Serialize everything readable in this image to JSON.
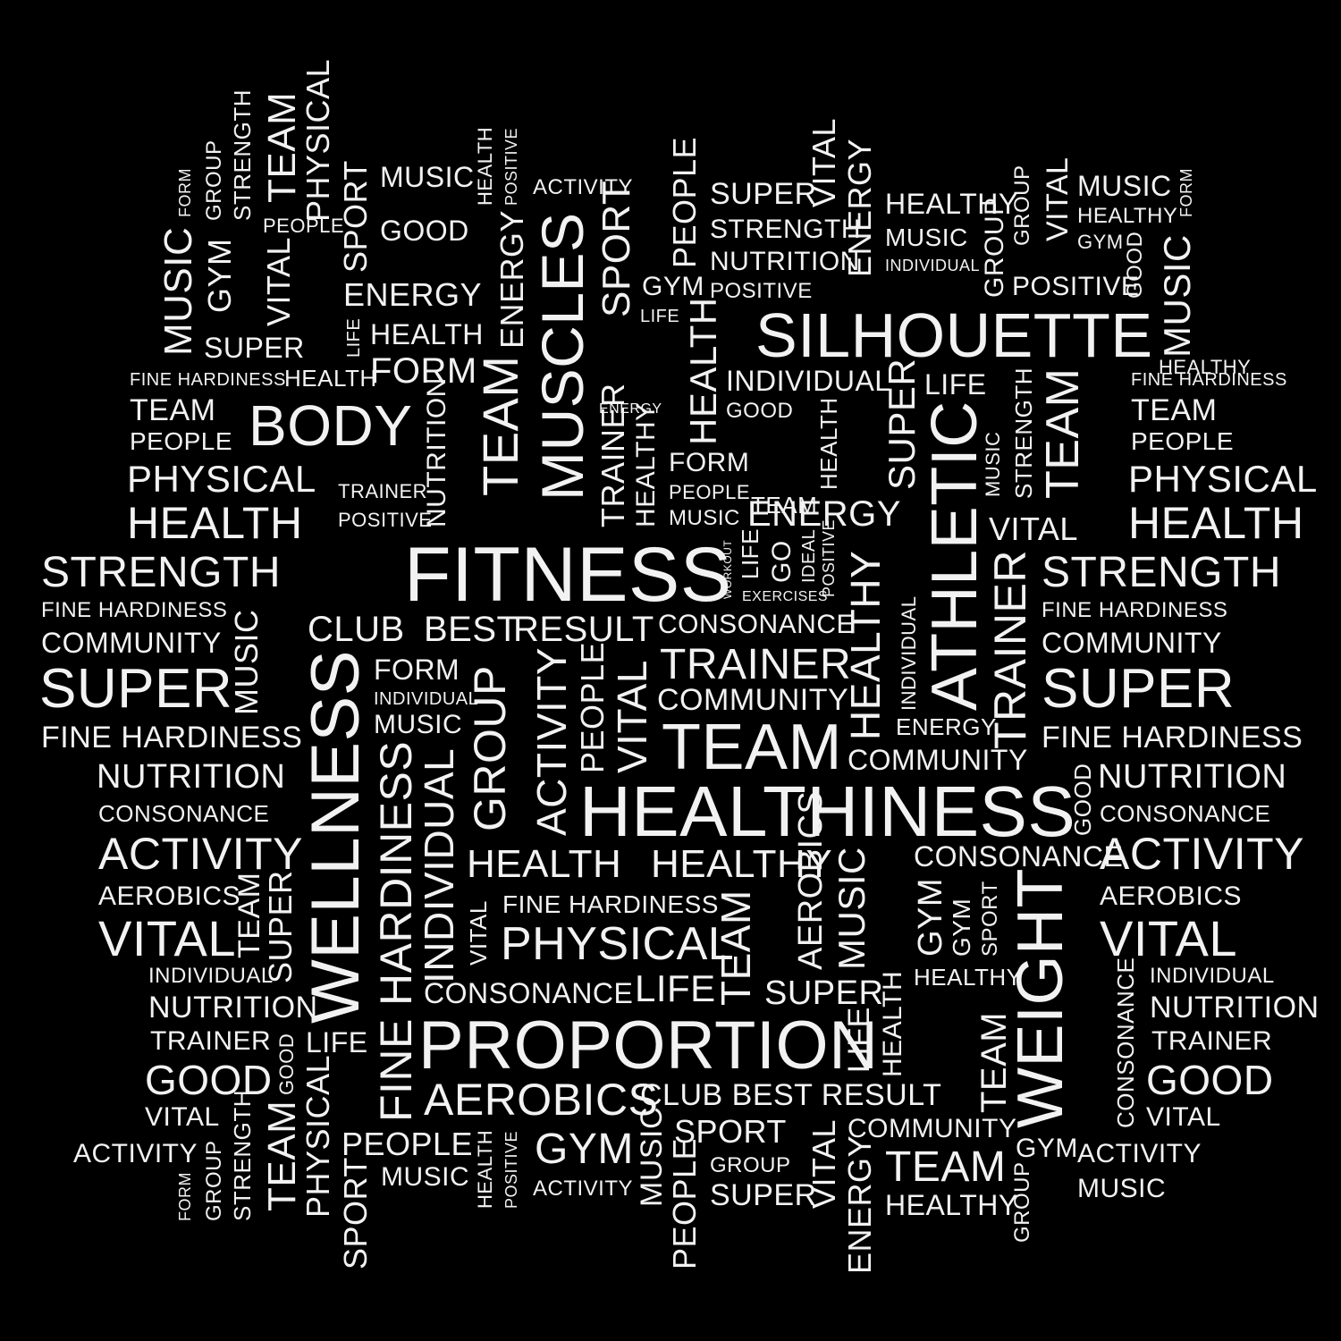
{
  "colors": {
    "background": "#000000",
    "text": "#f2f2f2"
  },
  "words": [
    "FITNESS",
    "HEALTHINESS",
    "PROPORTION",
    "SILHOUETTE",
    "MUSCLES",
    "WELLNESS",
    "ATHLETIC",
    "WEIGHT",
    "TEAM",
    "BODY",
    "TEAM",
    "TEAM",
    "GROUP",
    "HARDINESS",
    "FINE",
    "TRAINER",
    "INDIVIDUAL",
    "HEALTHY",
    "SUPER",
    "SUPER",
    "HEALTH",
    "HEALTH",
    "STRENGTH",
    "STRENGTH",
    "PHYSICAL",
    "PHYSICAL",
    "PHYSICAL",
    "ACTIVITY",
    "ACTIVITY",
    "ACTIVITY",
    "VITAL",
    "VITAL",
    "NUTRITION",
    "NUTRITION",
    "GOOD",
    "GOOD",
    "AEROBICS",
    "CONSONANCE",
    "CLUB",
    "BEST",
    "RESULT",
    "CLUB BEST RESULT",
    "COMMUNITY",
    "COMMUNITY",
    "COMMUNITY",
    "FINE HARDINESS",
    "FINE HARDINESS",
    "FINE HARDINESS",
    "FINE HARDINESS",
    "FINE HARDINESS",
    "MUSIC",
    "GYM",
    "SPORT",
    "PEOPLE",
    "LIFE",
    "HEALTH",
    "HEALTHY",
    "ENERGY",
    "ENERGY",
    "TRAINER",
    "TRAINER",
    "TRAINER",
    "AEROBICS",
    "AEROBICS",
    "INDIVIDUAL",
    "INDIVIDUAL",
    "NUTRITION",
    "NUTRITION",
    "CONSONANCE",
    "CONSONANCE",
    "CONSONANCE",
    "VITAL",
    "VITAL",
    "GOOD",
    "GOOD",
    "TEAM",
    "TEAM",
    "TEAM",
    "PEOPLE",
    "PEOPLE",
    "MUSIC",
    "MUSIC",
    "MUSIC",
    "MUSIC",
    "MUSIC",
    "MUSIC",
    "MUSIC",
    "GYM",
    "GYM",
    "GYM",
    "FORM",
    "FORM",
    "FORM",
    "FORM",
    "FORM",
    "FORM",
    "GROUP",
    "GROUP",
    "GROUP",
    "GROUP",
    "STRENGTH",
    "STRENGTH",
    "STRENGTH",
    "TEAM",
    "TEAM",
    "TEAM",
    "PHYSICAL",
    "PHYSICAL",
    "SPORT",
    "SPORT",
    "SPORT",
    "HEALTH",
    "HEALTH",
    "HEALTH",
    "HEALTH",
    "HEALTH",
    "POSITIVE",
    "POSITIVE",
    "POSITIVE",
    "POSITIVE",
    "POSITIVE",
    "ACTIVITY",
    "ACTIVITY",
    "ACTIVITY",
    "LIFE",
    "LIFE",
    "LIFE",
    "LIFE",
    "LIFE",
    "VITAL",
    "VITAL",
    "VITAL",
    "VITAL",
    "VITAL",
    "VITAL",
    "PEOPLE",
    "PEOPLE",
    "PEOPLE",
    "SUPER",
    "SUPER",
    "SUPER",
    "SUPER",
    "SUPER",
    "STRENGTH",
    "NUTRITION",
    "NUTRITION",
    "ENERGY",
    "ENERGY",
    "ENERGY",
    "ENERGY",
    "ENERGY",
    "HEALTHY",
    "HEALTHY",
    "HEALTHY",
    "HEALTHY",
    "INDIVIDUAL",
    "INDIVIDUAL",
    "INDIVIDUAL",
    "INDIVIDUAL",
    "WORKOUT",
    "LIFE",
    "GO",
    "IDEAL",
    "POSITIVE",
    "EXERCISES",
    "GOOD",
    "GOOD",
    "GOOD",
    "TRAINER",
    "TRAINER",
    "MUSIC",
    "MUSIC",
    "CONSONANCE",
    "CONSONANCE",
    "COMMUNITY",
    "COMMUNITY",
    "AEROBICS",
    "GYM",
    "GYM",
    "GYM",
    "SPORT",
    "GROUP",
    "GROUP",
    "TEAM",
    "TEAM",
    "TEAM",
    "HEALTH",
    "HEALTH",
    "FINE HARDINESS",
    "FINE HARDINESS",
    "HEALTHY",
    "HEALTHY",
    "PEOPLE",
    "PEOPLE",
    "MUSIC",
    "MUSIC",
    "MUSIC",
    "ACTIVITY",
    "SUPER",
    "VITAL"
  ]
}
